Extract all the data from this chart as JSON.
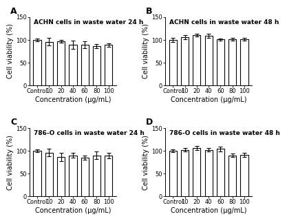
{
  "panels": [
    {
      "label": "A",
      "title": "ACHN cells in waste water 24 h",
      "categories": [
        "Control",
        "10",
        "20",
        "40",
        "60",
        "80",
        "100"
      ],
      "values": [
        100,
        96,
        97,
        89,
        89,
        86,
        89
      ],
      "errors": [
        3,
        8,
        3,
        9,
        8,
        5,
        4
      ]
    },
    {
      "label": "B",
      "title": "ACHN cells in waste water 48 h",
      "categories": [
        "Control",
        "10",
        "20",
        "40",
        "60",
        "80",
        "100"
      ],
      "values": [
        100,
        106,
        111,
        109,
        101,
        101,
        101
      ],
      "errors": [
        4,
        5,
        3,
        4,
        2,
        3,
        3
      ]
    },
    {
      "label": "C",
      "title": "786-O cells in waste water 24 h",
      "categories": [
        "Control",
        "10",
        "20",
        "40",
        "60",
        "80",
        "100"
      ],
      "values": [
        100,
        96,
        87,
        90,
        85,
        90,
        90
      ],
      "errors": [
        3,
        8,
        9,
        5,
        4,
        8,
        6
      ]
    },
    {
      "label": "D",
      "title": "786-O cells in waste water 48 h",
      "categories": [
        "Control",
        "10",
        "20",
        "40",
        "60",
        "80",
        "100"
      ],
      "values": [
        100,
        102,
        106,
        102,
        104,
        90,
        91
      ],
      "errors": [
        3,
        4,
        4,
        4,
        5,
        4,
        4
      ]
    }
  ],
  "ylabel": "Cell viability (%)",
  "xlabel": "Concentration (μg/mL)",
  "ylim": [
    0,
    150
  ],
  "yticks": [
    0,
    50,
    100,
    150
  ],
  "bar_color": "white",
  "bar_edgecolor": "black",
  "bar_linewidth": 0.8,
  "capsize": 2,
  "errorbar_color": "black",
  "errorbar_linewidth": 0.8,
  "title_fontsize": 6.5,
  "tick_fontsize": 6,
  "label_fontsize": 7,
  "panel_label_fontsize": 9,
  "background_color": "white"
}
